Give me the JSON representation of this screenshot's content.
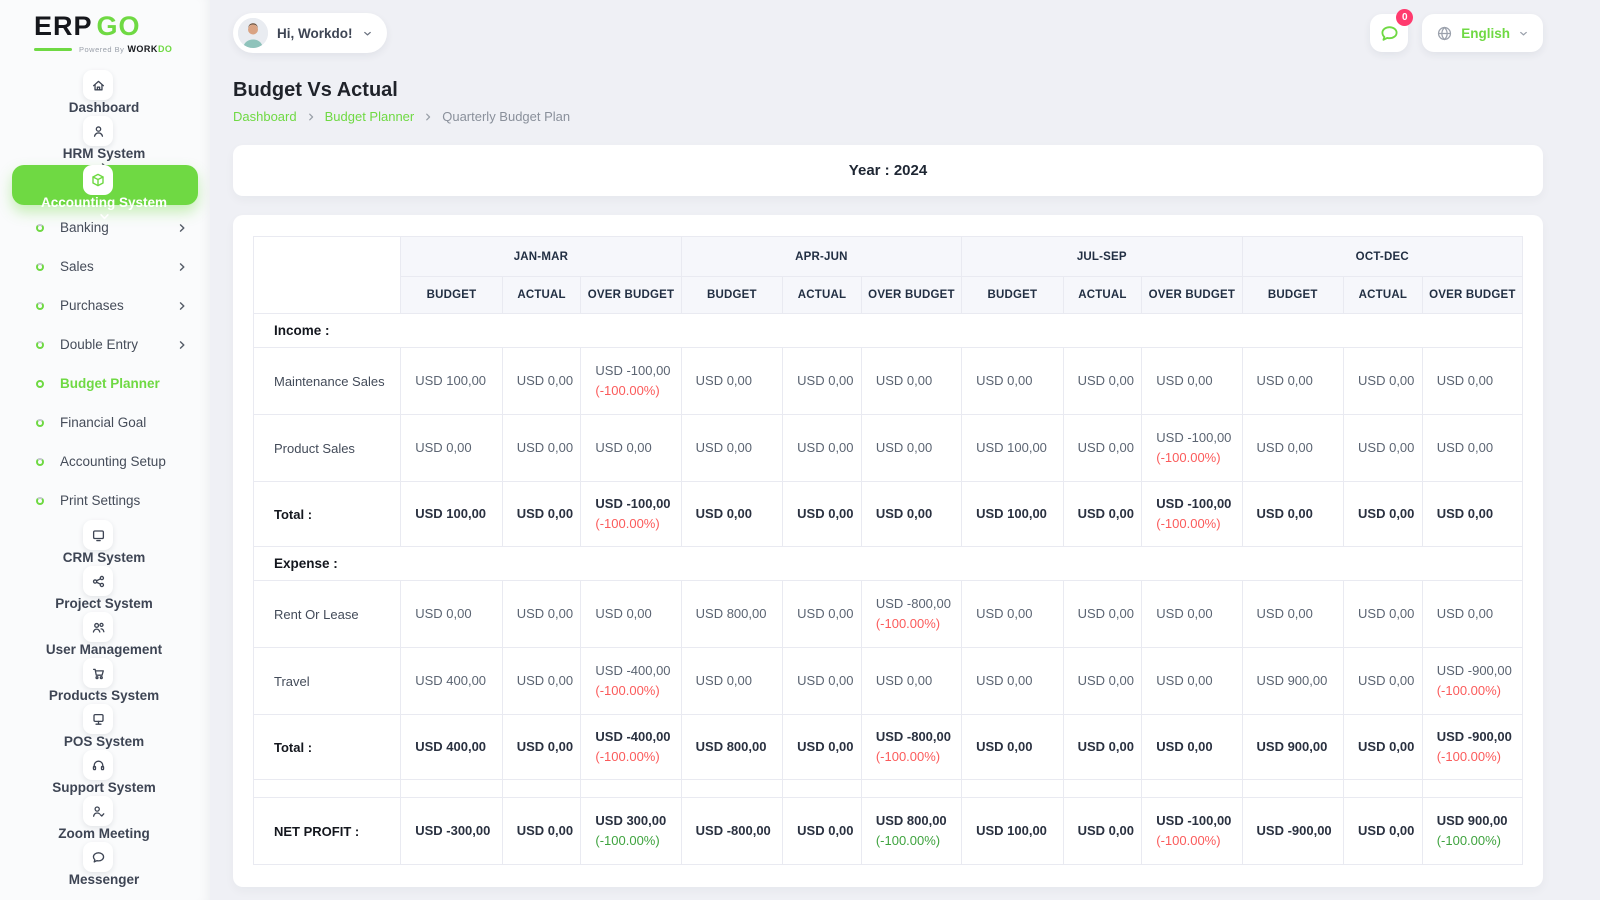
{
  "brand": {
    "name_part1": "ERP",
    "name_part2": "GO",
    "tagline_prefix": "Powered By",
    "tagline_part1": "WORK",
    "tagline_part2": "DO"
  },
  "topbar": {
    "greeting": "Hi, Workdo!",
    "notification_count": "0",
    "language": "English"
  },
  "page": {
    "title": "Budget Vs Actual",
    "breadcrumb": [
      "Dashboard",
      "Budget Planner",
      "Quarterly Budget Plan"
    ],
    "year_label": "Year : 2024"
  },
  "colors": {
    "accent_green": "#6fd943",
    "danger_red": "#fb5b5b",
    "success_green": "#3fa33f",
    "badge_red": "#ff3a6e"
  },
  "sidebar": {
    "items": [
      {
        "id": "dashboard",
        "label": "Dashboard",
        "icon": "home-icon",
        "type": "main",
        "chevron": "right"
      },
      {
        "id": "hrm-system",
        "label": "HRM System",
        "icon": "user-icon",
        "type": "main",
        "chevron": "right"
      },
      {
        "id": "accounting-system",
        "label": "Accounting System",
        "icon": "cube-icon",
        "type": "main",
        "chevron": "down",
        "active": true
      },
      {
        "id": "banking",
        "label": "Banking",
        "type": "sub",
        "chevron": "right"
      },
      {
        "id": "sales",
        "label": "Sales",
        "type": "sub",
        "chevron": "right"
      },
      {
        "id": "purchases",
        "label": "Purchases",
        "type": "sub",
        "chevron": "right"
      },
      {
        "id": "double-entry",
        "label": "Double Entry",
        "type": "sub",
        "chevron": "right"
      },
      {
        "id": "budget-planner",
        "label": "Budget Planner",
        "type": "sub",
        "active": true
      },
      {
        "id": "financial-goal",
        "label": "Financial Goal",
        "type": "sub"
      },
      {
        "id": "accounting-setup",
        "label": "Accounting Setup",
        "type": "sub"
      },
      {
        "id": "print-settings",
        "label": "Print Settings",
        "type": "sub"
      },
      {
        "id": "crm-system",
        "label": "CRM System",
        "icon": "monitor-icon",
        "type": "main",
        "chevron": "right"
      },
      {
        "id": "project-system",
        "label": "Project System",
        "icon": "share-nodes-icon",
        "type": "main",
        "chevron": "right"
      },
      {
        "id": "user-management",
        "label": "User Management",
        "icon": "users-icon",
        "type": "main",
        "chevron": "right"
      },
      {
        "id": "products-system",
        "label": "Products System",
        "icon": "cart-icon",
        "type": "main",
        "chevron": "right"
      },
      {
        "id": "pos-system",
        "label": "POS System",
        "icon": "pos-icon",
        "type": "main",
        "chevron": "right"
      },
      {
        "id": "support-system",
        "label": "Support System",
        "icon": "headset-icon",
        "type": "main"
      },
      {
        "id": "zoom-meeting",
        "label": "Zoom Meeting",
        "icon": "video-user-icon",
        "type": "main"
      },
      {
        "id": "messenger",
        "label": "Messenger",
        "icon": "chat-icon",
        "type": "main"
      }
    ]
  },
  "budget_table": {
    "quarters": [
      "JAN-MAR",
      "APR-JUN",
      "JUL-SEP",
      "OCT-DEC"
    ],
    "sub_headers": [
      "BUDGET",
      "ACTUAL",
      "OVER BUDGET"
    ],
    "sections": [
      {
        "title": "Income :",
        "rows": [
          {
            "label": "Maintenance Sales",
            "cells": [
              {
                "value": "USD 100,00"
              },
              {
                "value": "USD 0,00"
              },
              {
                "value": "USD -100,00",
                "pct": "(-100.00%)",
                "pct_color": "red"
              },
              {
                "value": "USD 0,00"
              },
              {
                "value": "USD 0,00"
              },
              {
                "value": "USD 0,00"
              },
              {
                "value": "USD 0,00"
              },
              {
                "value": "USD 0,00"
              },
              {
                "value": "USD 0,00"
              },
              {
                "value": "USD 0,00"
              },
              {
                "value": "USD 0,00"
              },
              {
                "value": "USD 0,00"
              }
            ]
          },
          {
            "label": "Product Sales",
            "cells": [
              {
                "value": "USD 0,00"
              },
              {
                "value": "USD 0,00"
              },
              {
                "value": "USD 0,00"
              },
              {
                "value": "USD 0,00"
              },
              {
                "value": "USD 0,00"
              },
              {
                "value": "USD 0,00"
              },
              {
                "value": "USD 100,00"
              },
              {
                "value": "USD 0,00"
              },
              {
                "value": "USD -100,00",
                "pct": "(-100.00%)",
                "pct_color": "red"
              },
              {
                "value": "USD 0,00"
              },
              {
                "value": "USD 0,00"
              },
              {
                "value": "USD 0,00"
              }
            ]
          }
        ],
        "total": {
          "label": "Total :",
          "cells": [
            {
              "value": "USD 100,00"
            },
            {
              "value": "USD 0,00"
            },
            {
              "value": "USD -100,00",
              "pct": "(-100.00%)",
              "pct_color": "red"
            },
            {
              "value": "USD 0,00"
            },
            {
              "value": "USD 0,00"
            },
            {
              "value": "USD 0,00"
            },
            {
              "value": "USD 100,00"
            },
            {
              "value": "USD 0,00"
            },
            {
              "value": "USD -100,00",
              "pct": "(-100.00%)",
              "pct_color": "red"
            },
            {
              "value": "USD 0,00"
            },
            {
              "value": "USD 0,00"
            },
            {
              "value": "USD 0,00"
            }
          ]
        }
      },
      {
        "title": "Expense :",
        "rows": [
          {
            "label": "Rent Or Lease",
            "cells": [
              {
                "value": "USD 0,00"
              },
              {
                "value": "USD 0,00"
              },
              {
                "value": "USD 0,00"
              },
              {
                "value": "USD 800,00"
              },
              {
                "value": "USD 0,00"
              },
              {
                "value": "USD -800,00",
                "pct": "(-100.00%)",
                "pct_color": "red"
              },
              {
                "value": "USD 0,00"
              },
              {
                "value": "USD 0,00"
              },
              {
                "value": "USD 0,00"
              },
              {
                "value": "USD 0,00"
              },
              {
                "value": "USD 0,00"
              },
              {
                "value": "USD 0,00"
              }
            ]
          },
          {
            "label": "Travel",
            "cells": [
              {
                "value": "USD 400,00"
              },
              {
                "value": "USD 0,00"
              },
              {
                "value": "USD -400,00",
                "pct": "(-100.00%)",
                "pct_color": "red"
              },
              {
                "value": "USD 0,00"
              },
              {
                "value": "USD 0,00"
              },
              {
                "value": "USD 0,00"
              },
              {
                "value": "USD 0,00"
              },
              {
                "value": "USD 0,00"
              },
              {
                "value": "USD 0,00"
              },
              {
                "value": "USD 900,00"
              },
              {
                "value": "USD 0,00"
              },
              {
                "value": "USD -900,00",
                "pct": "(-100.00%)",
                "pct_color": "red"
              }
            ]
          }
        ],
        "total": {
          "label": "Total :",
          "cells": [
            {
              "value": "USD 400,00"
            },
            {
              "value": "USD 0,00"
            },
            {
              "value": "USD -400,00",
              "pct": "(-100.00%)",
              "pct_color": "red"
            },
            {
              "value": "USD 800,00"
            },
            {
              "value": "USD 0,00"
            },
            {
              "value": "USD -800,00",
              "pct": "(-100.00%)",
              "pct_color": "red"
            },
            {
              "value": "USD 0,00"
            },
            {
              "value": "USD 0,00"
            },
            {
              "value": "USD 0,00"
            },
            {
              "value": "USD 900,00"
            },
            {
              "value": "USD 0,00"
            },
            {
              "value": "USD -900,00",
              "pct": "(-100.00%)",
              "pct_color": "red"
            }
          ]
        }
      }
    ],
    "net_profit": {
      "label": "NET PROFIT :",
      "cells": [
        {
          "value": "USD -300,00"
        },
        {
          "value": "USD 0,00"
        },
        {
          "value": "USD 300,00",
          "pct": "(-100.00%)",
          "pct_color": "green"
        },
        {
          "value": "USD -800,00"
        },
        {
          "value": "USD 0,00"
        },
        {
          "value": "USD 800,00",
          "pct": "(-100.00%)",
          "pct_color": "green"
        },
        {
          "value": "USD 100,00"
        },
        {
          "value": "USD 0,00"
        },
        {
          "value": "USD -100,00",
          "pct": "(-100.00%)",
          "pct_color": "red"
        },
        {
          "value": "USD -900,00"
        },
        {
          "value": "USD 0,00"
        },
        {
          "value": "USD 900,00",
          "pct": "(-100.00%)",
          "pct_color": "green"
        }
      ]
    }
  }
}
